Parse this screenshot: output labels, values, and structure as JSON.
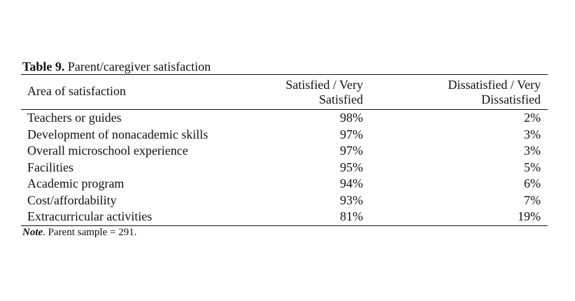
{
  "table": {
    "caption_label": "Table 9.",
    "caption_text": "Parent/caregiver satisfaction",
    "headers": {
      "area": "Area of satisfaction",
      "satisfied_line1": "Satisfied / Very",
      "satisfied_line2": "Satisfied",
      "dissatisfied_line1": "Dissatisfied / Very",
      "dissatisfied_line2": "Dissatisfied"
    },
    "rows": [
      {
        "area": "Teachers or guides",
        "satisfied": "98%",
        "dissatisfied": "2%"
      },
      {
        "area": "Development of nonacademic skills",
        "satisfied": "97%",
        "dissatisfied": "3%"
      },
      {
        "area": "Overall microschool experience",
        "satisfied": "97%",
        "dissatisfied": "3%"
      },
      {
        "area": "Facilities",
        "satisfied": "95%",
        "dissatisfied": "5%"
      },
      {
        "area": "Academic program",
        "satisfied": "94%",
        "dissatisfied": "6%"
      },
      {
        "area": "Cost/affordability",
        "satisfied": "93%",
        "dissatisfied": "7%"
      },
      {
        "area": "Extracurricular activities",
        "satisfied": "81%",
        "dissatisfied": "19%"
      }
    ],
    "note_label": "Note",
    "note_text": ". Parent sample = 291."
  }
}
